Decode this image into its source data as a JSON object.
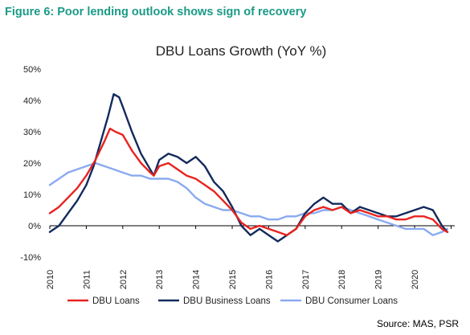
{
  "figure_caption": "Figure 6: Poor lending outlook shows sign of recovery",
  "source": "Source: MAS, PSR",
  "colors": {
    "caption": "#1a9a86",
    "dbu_loans": "#e8231f",
    "dbu_business_loans": "#132a5c",
    "dbu_consumer_loans": "#8aaaf0"
  },
  "chart_data": {
    "type": "line",
    "title": "DBU Loans Growth (YoY %)",
    "xlabel": "",
    "ylabel": "",
    "ylim": [
      -10,
      50
    ],
    "xlim": [
      2010.0,
      2021.1
    ],
    "grid": false,
    "legend": "bottom",
    "y_ticks": [
      "50%",
      "40%",
      "30%",
      "20%",
      "10%",
      "0%",
      "-10%"
    ],
    "y_tick_values": [
      50,
      40,
      30,
      20,
      10,
      0,
      -10
    ],
    "x_ticks": [
      "2010",
      "2011",
      "2012",
      "2013",
      "2014",
      "2015",
      "2016",
      "2017",
      "2018",
      "2019",
      "2020"
    ],
    "x_tick_values": [
      2010,
      2011,
      2012,
      2013,
      2014,
      2015,
      2016,
      2017,
      2018,
      2019,
      2020
    ],
    "series": [
      {
        "name": "DBU Loans",
        "x": [
          2010.0,
          2010.25,
          2010.5,
          2010.75,
          2011.0,
          2011.25,
          2011.5,
          2011.65,
          2011.8,
          2012.0,
          2012.25,
          2012.5,
          2012.75,
          2012.85,
          2013.0,
          2013.25,
          2013.5,
          2013.75,
          2014.0,
          2014.25,
          2014.5,
          2014.75,
          2015.0,
          2015.25,
          2015.5,
          2015.75,
          2016.0,
          2016.25,
          2016.5,
          2016.75,
          2017.0,
          2017.25,
          2017.5,
          2017.75,
          2018.0,
          2018.25,
          2018.5,
          2018.75,
          2019.0,
          2019.25,
          2019.5,
          2019.75,
          2020.0,
          2020.25,
          2020.5,
          2020.75,
          2020.9
        ],
        "y": [
          4,
          6,
          9,
          12,
          16,
          21,
          27,
          31,
          30,
          29,
          24,
          20,
          17,
          16,
          19,
          20,
          18,
          16,
          15,
          13,
          11,
          8,
          5,
          1,
          -1,
          0,
          -1,
          -2,
          -3,
          -1,
          3,
          5,
          6,
          5,
          6,
          4,
          5,
          4,
          3,
          3,
          2,
          2,
          3,
          3,
          2,
          -1,
          -2
        ]
      },
      {
        "name": "DBU Business Loans",
        "x": [
          2010.0,
          2010.25,
          2010.5,
          2010.75,
          2011.0,
          2011.2,
          2011.4,
          2011.6,
          2011.75,
          2011.9,
          2012.0,
          2012.25,
          2012.5,
          2012.75,
          2012.85,
          2013.0,
          2013.25,
          2013.5,
          2013.75,
          2014.0,
          2014.25,
          2014.5,
          2014.75,
          2015.0,
          2015.25,
          2015.5,
          2015.75,
          2016.0,
          2016.25,
          2016.5,
          2016.75,
          2017.0,
          2017.25,
          2017.5,
          2017.75,
          2018.0,
          2018.25,
          2018.5,
          2018.75,
          2019.0,
          2019.25,
          2019.5,
          2019.75,
          2020.0,
          2020.25,
          2020.5,
          2020.75,
          2020.9
        ],
        "y": [
          -2,
          0,
          4,
          8,
          13,
          19,
          27,
          35,
          42,
          41,
          38,
          30,
          23,
          18,
          16,
          21,
          23,
          22,
          20,
          22,
          19,
          14,
          11,
          6,
          0,
          -3,
          -1,
          -3,
          -5,
          -3,
          -1,
          4,
          7,
          9,
          7,
          7,
          4,
          6,
          5,
          4,
          3,
          3,
          4,
          5,
          6,
          5,
          0,
          -2
        ]
      },
      {
        "name": "DBU Consumer Loans",
        "x": [
          2010.0,
          2010.25,
          2010.5,
          2010.75,
          2011.0,
          2011.25,
          2011.5,
          2011.75,
          2012.0,
          2012.25,
          2012.5,
          2012.75,
          2013.0,
          2013.25,
          2013.5,
          2013.75,
          2014.0,
          2014.25,
          2014.5,
          2014.75,
          2015.0,
          2015.25,
          2015.5,
          2015.75,
          2016.0,
          2016.25,
          2016.5,
          2016.75,
          2017.0,
          2017.25,
          2017.5,
          2017.75,
          2018.0,
          2018.25,
          2018.5,
          2018.75,
          2019.0,
          2019.25,
          2019.5,
          2019.75,
          2020.0,
          2020.25,
          2020.5,
          2020.75,
          2020.9
        ],
        "y": [
          13,
          15,
          17,
          18,
          19,
          20,
          19,
          18,
          17,
          16,
          16,
          15,
          15,
          15,
          14,
          12,
          9,
          7,
          6,
          5,
          5,
          4,
          3,
          3,
          2,
          2,
          3,
          3,
          4,
          4,
          5,
          5,
          6,
          5,
          4,
          3,
          2,
          1,
          0,
          -1,
          -1,
          -1,
          -3,
          -2,
          -1
        ]
      }
    ]
  }
}
